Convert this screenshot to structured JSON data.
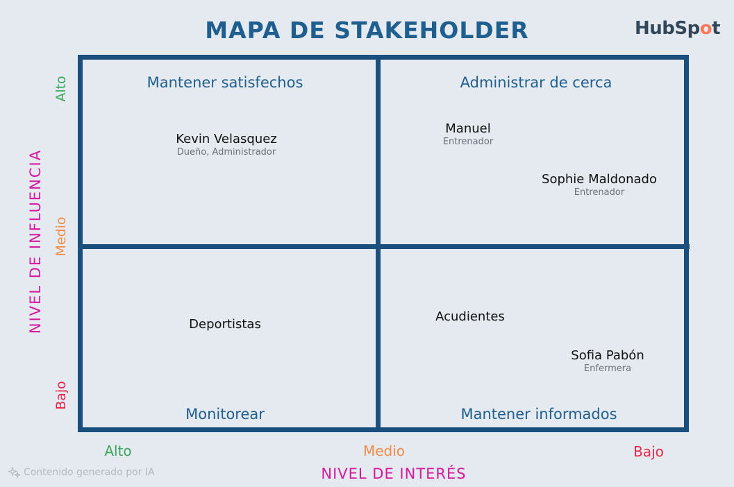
{
  "title": "MAPA DE STAKEHOLDER",
  "brand": {
    "text_before": "HubSp",
    "text_accent": "o",
    "text_after": "t"
  },
  "quadrants": {
    "top_left": "Mantener satisfechos",
    "top_right": "Administrar de cerca",
    "bottom_left": "Monitorear",
    "bottom_right": "Mantener informados"
  },
  "stakeholders": [
    {
      "name": "Kevin Velasquez",
      "role": "Dueño, Administrador"
    },
    {
      "name": "Manuel",
      "role": "Entrenador"
    },
    {
      "name": "Sophie Maldonado",
      "role": "Entrenador"
    },
    {
      "name": "Deportistas",
      "role": ""
    },
    {
      "name": "Acudientes",
      "role": ""
    },
    {
      "name": "Sofia Pabón",
      "role": "Enfermera"
    }
  ],
  "y_axis": {
    "label": "NIVEL DE INFLUENCIA",
    "ticks": [
      "Alto",
      "Medio",
      "Bajo"
    ]
  },
  "x_axis": {
    "label": "NIVEL DE INTERÉS",
    "ticks": [
      "Alto",
      "Medio",
      "Bajo"
    ]
  },
  "colors": {
    "grid": "#1b4f7e",
    "title": "#1e5f8f",
    "axis_label": "#d6199e",
    "alto": "#3aa55a",
    "medio": "#f28c4a",
    "bajo": "#e8264a"
  },
  "footer_note": "Contenido generado por IA"
}
